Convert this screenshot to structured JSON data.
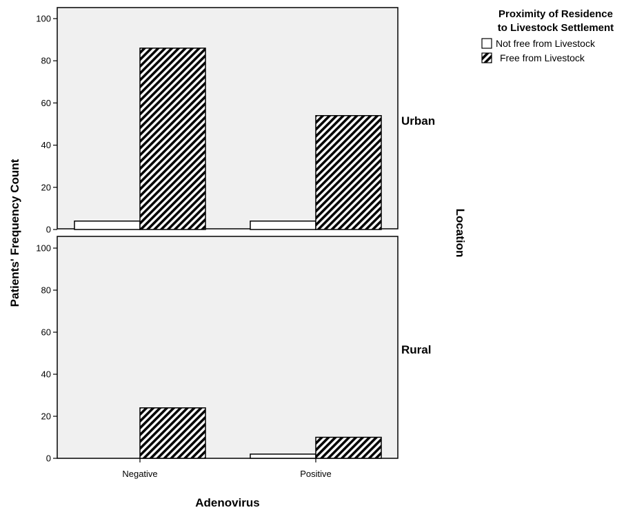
{
  "chart_data": {
    "type": "bar",
    "xlabel": "Adenovirus",
    "ylabel": "Patients' Frequency Count",
    "row_facet_label": "Location",
    "categories": [
      "Negative",
      "Positive"
    ],
    "ylim": [
      0,
      100
    ],
    "yticks": [
      "0",
      "20",
      "40",
      "60",
      "80",
      "100"
    ],
    "legend": {
      "title_line1": "Proximity of Residence",
      "title_line2": "to Livestock Settlement",
      "placement": "top-right",
      "entries": [
        "Not free from Livestock",
        "Free from Livestock"
      ]
    },
    "panels": [
      {
        "label": "Urban",
        "series": [
          {
            "name": "Not free from Livestock",
            "values": [
              4,
              4
            ]
          },
          {
            "name": "Free from Livestock",
            "values": [
              86,
              54
            ]
          }
        ]
      },
      {
        "label": "Rural",
        "series": [
          {
            "name": "Not free from Livestock",
            "values": [
              0,
              2
            ]
          },
          {
            "name": "Free from Livestock",
            "values": [
              24,
              10
            ]
          }
        ]
      }
    ],
    "panel_background": "#f0f0f0",
    "bar_fill_not_free": "#ffffff",
    "bar_fill_free": "hatched-black",
    "grid": false
  }
}
